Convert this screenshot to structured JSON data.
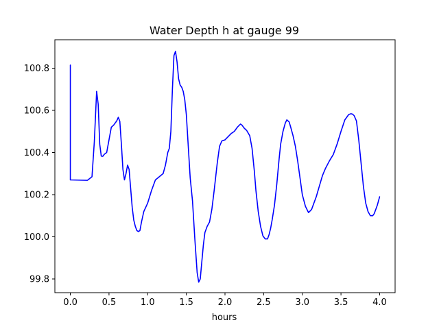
{
  "chart_data": {
    "type": "line",
    "title": "Water Depth h at gauge 99",
    "xlabel": "hours",
    "ylabel": "",
    "xlim": [
      -0.2,
      4.2
    ],
    "ylim": [
      99.735,
      100.935
    ],
    "xticks": [
      0.0,
      0.5,
      1.0,
      1.5,
      2.0,
      2.5,
      3.0,
      3.5,
      4.0
    ],
    "xtick_labels": [
      "0.0",
      "0.5",
      "1.0",
      "1.5",
      "2.0",
      "2.5",
      "3.0",
      "3.5",
      "4.0"
    ],
    "yticks": [
      99.8,
      100.0,
      100.2,
      100.4,
      100.6,
      100.8
    ],
    "ytick_labels": [
      "99.8",
      "100.0",
      "100.2",
      "100.4",
      "100.6",
      "100.8"
    ],
    "grid": false,
    "series": [
      {
        "color": "#0000ff",
        "x": [
          0.0,
          0.0,
          0.0,
          0.22,
          0.28,
          0.31,
          0.34,
          0.36,
          0.38,
          0.4,
          0.42,
          0.44,
          0.47,
          0.5,
          0.53,
          0.56,
          0.6,
          0.62,
          0.64,
          0.66,
          0.68,
          0.7,
          0.72,
          0.74,
          0.76,
          0.78,
          0.8,
          0.82,
          0.84,
          0.86,
          0.88,
          0.9,
          0.92,
          0.95,
          1.0,
          1.05,
          1.1,
          1.15,
          1.2,
          1.23,
          1.26,
          1.28,
          1.3,
          1.32,
          1.34,
          1.36,
          1.38,
          1.4,
          1.42,
          1.44,
          1.46,
          1.48,
          1.5,
          1.52,
          1.55,
          1.58,
          1.61,
          1.64,
          1.66,
          1.68,
          1.7,
          1.72,
          1.74,
          1.77,
          1.8,
          1.83,
          1.86,
          1.9,
          1.93,
          1.96,
          2.0,
          2.04,
          2.08,
          2.12,
          2.16,
          2.2,
          2.22,
          2.25,
          2.28,
          2.32,
          2.35,
          2.38,
          2.4,
          2.43,
          2.46,
          2.49,
          2.52,
          2.55,
          2.57,
          2.59,
          2.61,
          2.64,
          2.67,
          2.7,
          2.72,
          2.75,
          2.78,
          2.8,
          2.83,
          2.85,
          2.88,
          2.91,
          2.94,
          2.97,
          3.0,
          3.04,
          3.08,
          3.12,
          3.15,
          3.18,
          3.22,
          3.26,
          3.3,
          3.35,
          3.4,
          3.45,
          3.5,
          3.55,
          3.6,
          3.63,
          3.65,
          3.67,
          3.7,
          3.73,
          3.76,
          3.79,
          3.82,
          3.85,
          3.88,
          3.91,
          3.93,
          3.95,
          3.97,
          4.0
        ],
        "y": [
          100.815,
          100.4,
          100.27,
          100.268,
          100.285,
          100.45,
          100.69,
          100.63,
          100.44,
          100.383,
          100.382,
          100.392,
          100.4,
          100.46,
          100.52,
          100.53,
          100.55,
          100.567,
          100.548,
          100.44,
          100.32,
          100.27,
          100.3,
          100.34,
          100.32,
          100.23,
          100.14,
          100.08,
          100.05,
          100.03,
          100.025,
          100.03,
          100.07,
          100.12,
          100.16,
          100.22,
          100.27,
          100.285,
          100.3,
          100.34,
          100.4,
          100.42,
          100.5,
          100.7,
          100.86,
          100.88,
          100.83,
          100.75,
          100.72,
          100.71,
          100.69,
          100.65,
          100.58,
          100.46,
          100.28,
          100.17,
          99.99,
          99.83,
          99.785,
          99.8,
          99.88,
          99.96,
          100.02,
          100.05,
          100.07,
          100.13,
          100.22,
          100.35,
          100.43,
          100.455,
          100.46,
          100.475,
          100.49,
          100.5,
          100.52,
          100.535,
          100.53,
          100.515,
          100.505,
          100.48,
          100.42,
          100.31,
          100.22,
          100.12,
          100.05,
          100.005,
          99.99,
          99.99,
          100.01,
          100.04,
          100.08,
          100.15,
          100.25,
          100.37,
          100.44,
          100.5,
          100.54,
          100.555,
          100.545,
          100.52,
          100.48,
          100.43,
          100.36,
          100.28,
          100.2,
          100.145,
          100.115,
          100.13,
          100.16,
          100.19,
          100.24,
          100.29,
          100.325,
          100.36,
          100.39,
          100.44,
          100.5,
          100.555,
          100.58,
          100.584,
          100.582,
          100.575,
          100.55,
          100.46,
          100.35,
          100.24,
          100.16,
          100.12,
          100.1,
          100.1,
          100.11,
          100.13,
          100.15,
          100.19
        ]
      }
    ]
  }
}
